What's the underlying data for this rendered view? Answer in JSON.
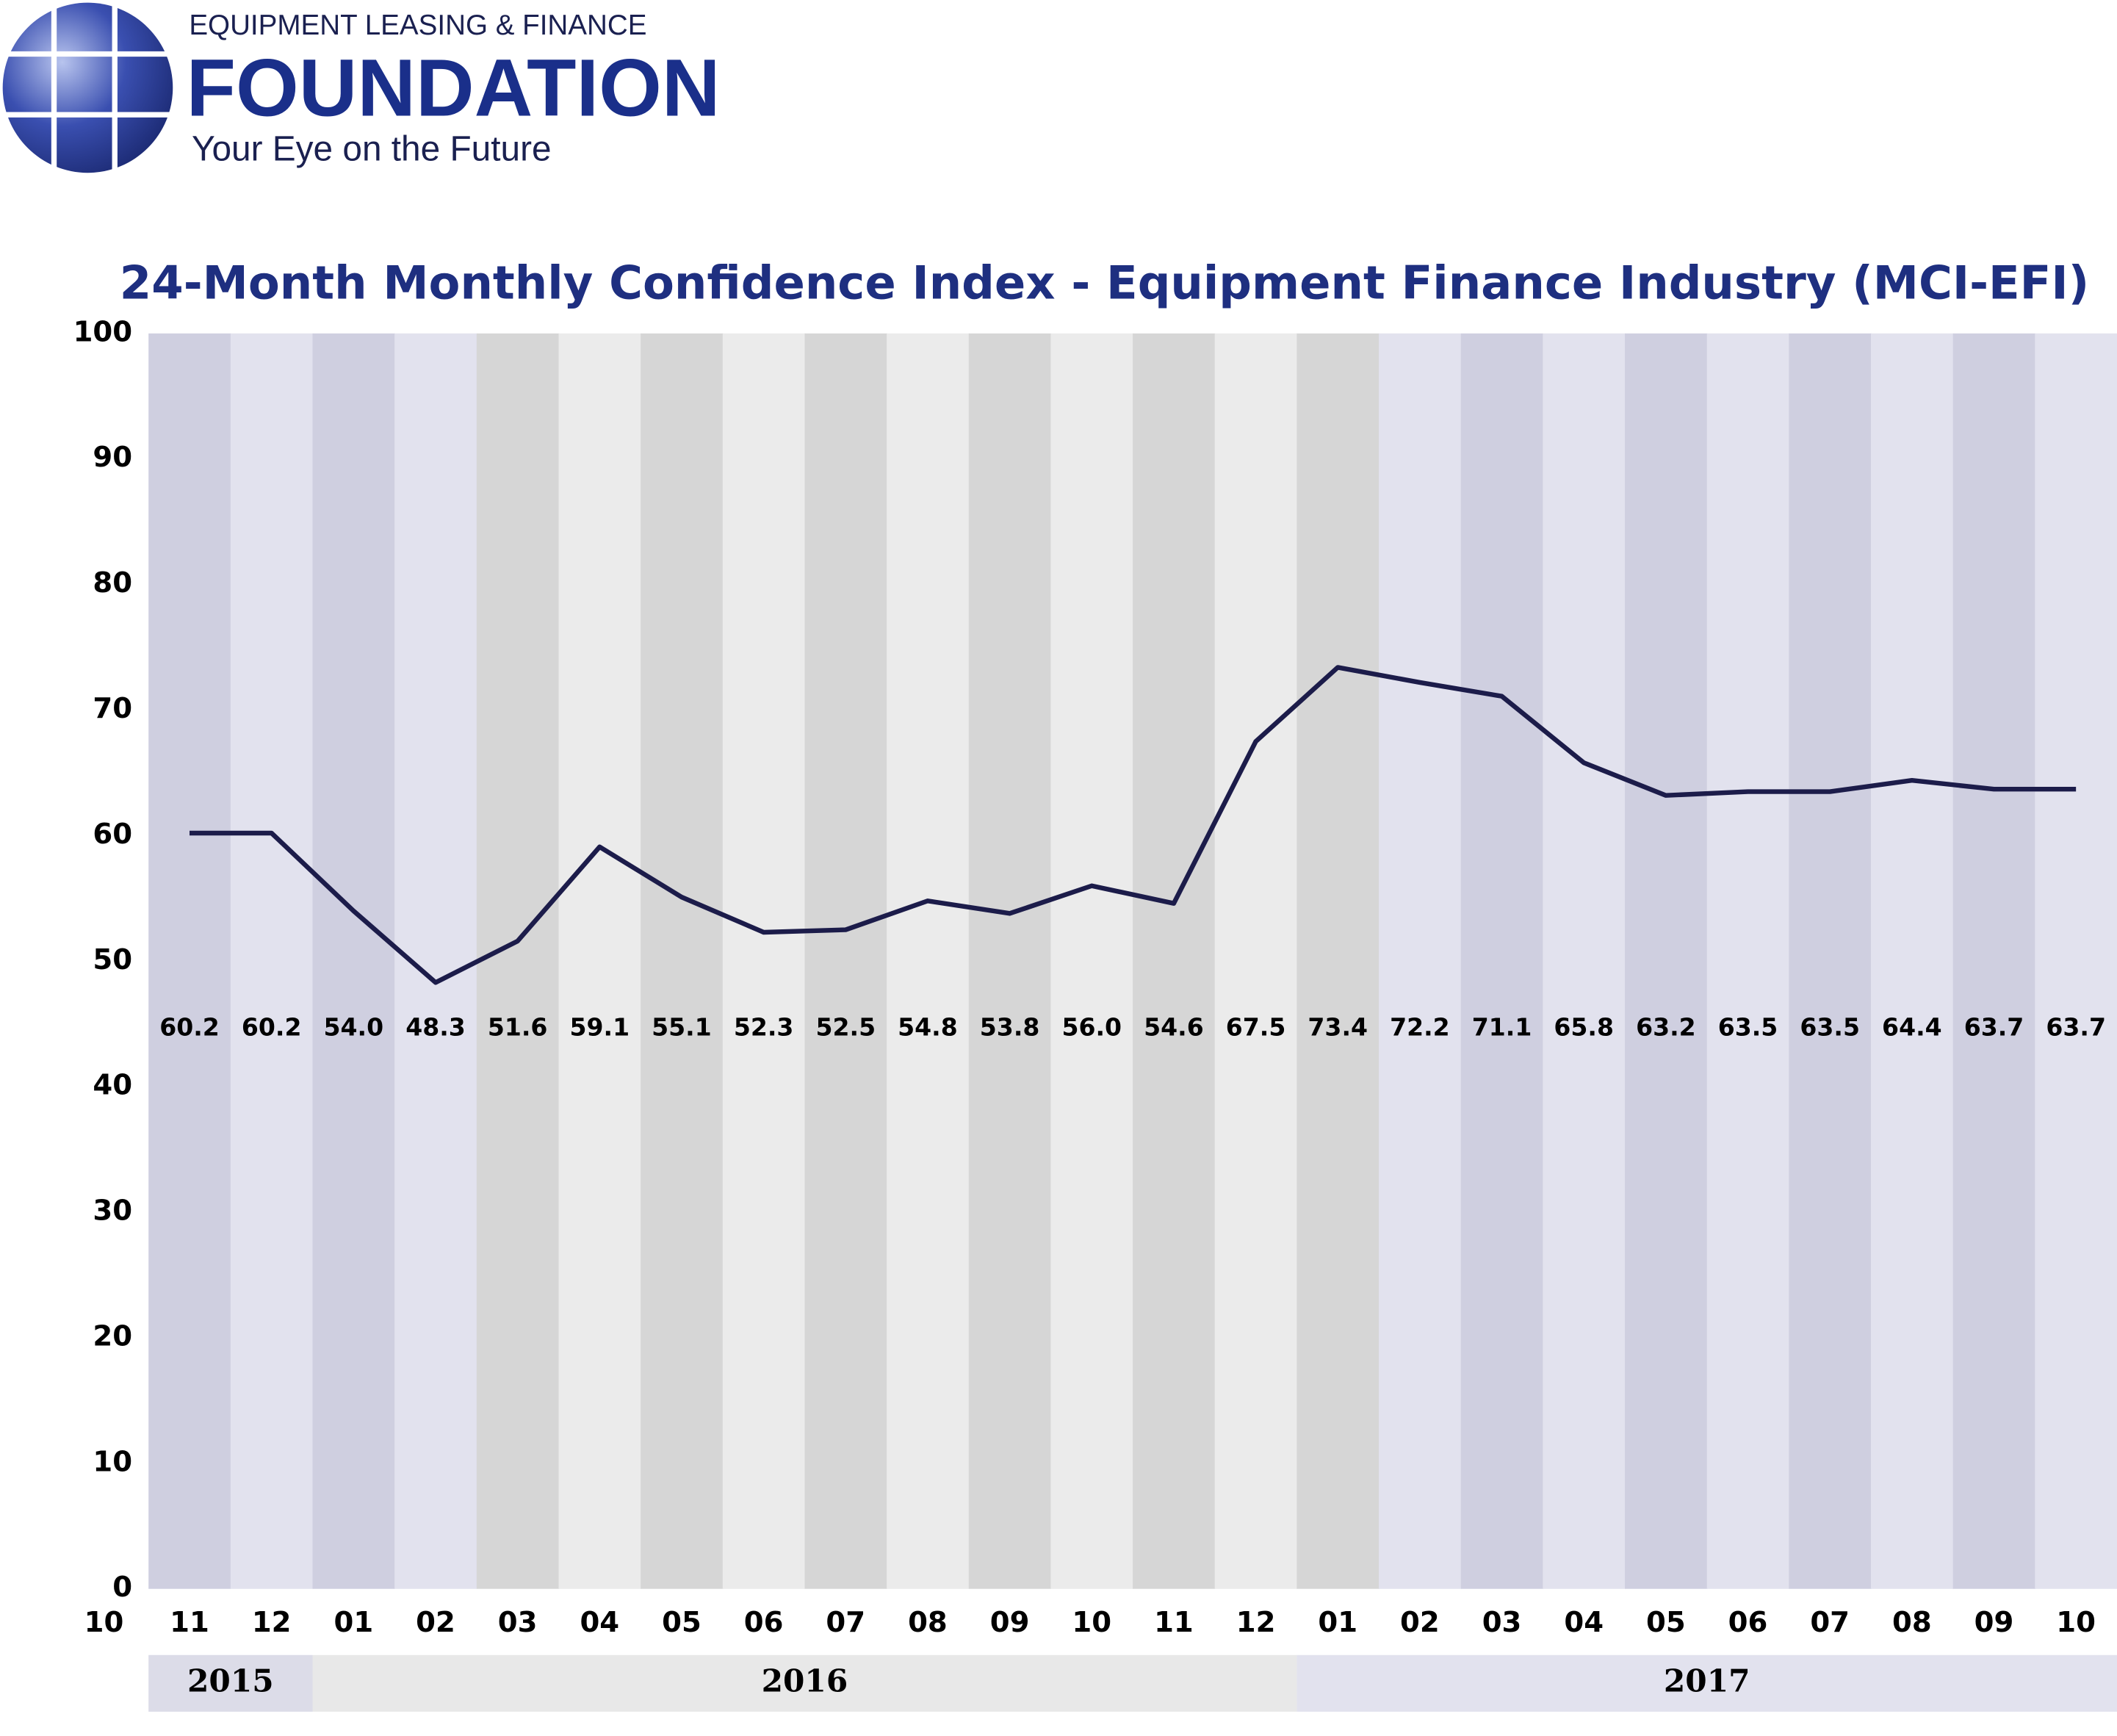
{
  "logo": {
    "top_line": "EQUIPMENT LEASING & FINANCE",
    "name": "FOUNDATION",
    "tagline": "Your Eye on the Future"
  },
  "chart_data": {
    "type": "line",
    "title": "24-Month Monthly Confidence Index - Equipment Finance Industry (MCI-EFI)",
    "corner_label": "10",
    "categories": [
      "11",
      "12",
      "01",
      "02",
      "03",
      "04",
      "05",
      "06",
      "07",
      "08",
      "09",
      "10",
      "11",
      "12",
      "01",
      "02",
      "03",
      "04",
      "05",
      "06",
      "07",
      "08",
      "09",
      "10"
    ],
    "years": [
      "2015",
      "2016",
      "2017"
    ],
    "series": [
      {
        "name": "MCI-EFI",
        "color": "#1c1c4a",
        "values": [
          60.2,
          60.2,
          54.0,
          48.3,
          51.6,
          59.1,
          55.1,
          52.3,
          52.5,
          54.8,
          53.8,
          56.0,
          54.6,
          67.5,
          73.4,
          72.2,
          71.1,
          65.8,
          63.2,
          63.5,
          63.5,
          64.4,
          63.7,
          63.7
        ],
        "value_labels": [
          "60.2",
          "60.2",
          "54.0",
          "48.3",
          "51.6",
          "59.1",
          "55.1",
          "52.3",
          "52.5",
          "54.8",
          "53.8",
          "56.0",
          "54.6",
          "67.5",
          "73.4",
          "72.2",
          "71.1",
          "65.8",
          "63.2",
          "63.5",
          "63.5",
          "64.4",
          "63.7",
          "63.7"
        ]
      }
    ],
    "ylim": [
      0,
      100
    ],
    "yticks": [
      0,
      10,
      20,
      30,
      40,
      50,
      60,
      70,
      80,
      90,
      100
    ]
  }
}
